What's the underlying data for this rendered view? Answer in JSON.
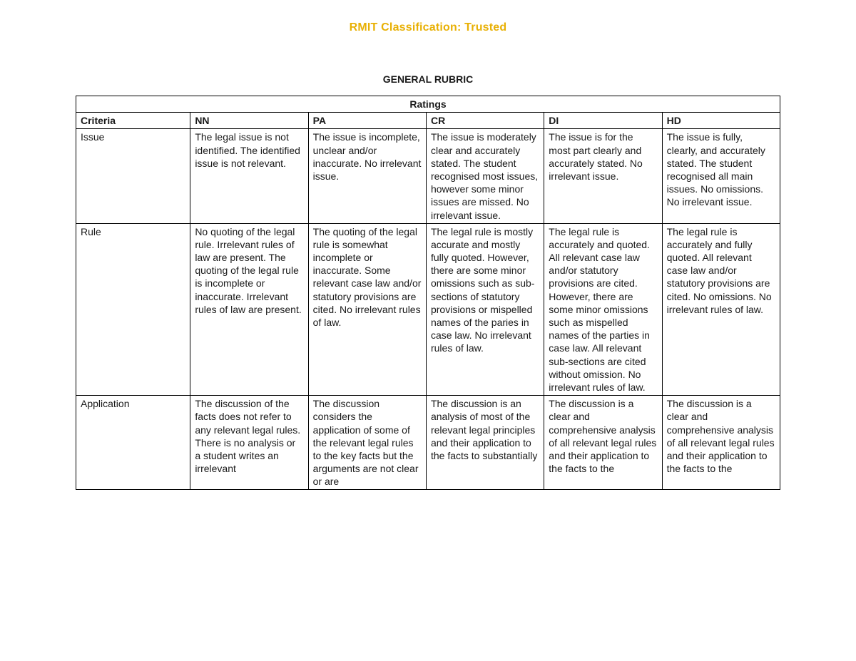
{
  "classification_text": "RMIT Classification: Trusted",
  "classification_color": "#e8b004",
  "classification_fontsize": "16px",
  "title": "GENERAL RUBRIC",
  "ratings_header": "Ratings",
  "columns": [
    "Criteria",
    "NN",
    "PA",
    "CR",
    "DI",
    "HD"
  ],
  "rows": [
    {
      "criteria": "Issue",
      "cells": [
        "The legal issue is not identified. The identified issue is not relevant.",
        "The issue is incomplete, unclear and/or inaccurate. No irrelevant issue.",
        "The issue is moderately clear and accurately stated. The student recognised most issues, however some minor issues are missed. No irrelevant issue.",
        "The issue is for the most part clearly and accurately stated. No irrelevant issue.",
        "The issue is fully, clearly, and accurately stated. The student recognised all main issues. No omissions. No irrelevant issue."
      ]
    },
    {
      "criteria": "Rule",
      "cells": [
        "No quoting of the legal rule. Irrelevant rules of law are present. The quoting of the legal rule is incomplete or inaccurate. Irrelevant rules of law are present.",
        "The quoting of the legal rule is somewhat incomplete or inaccurate. Some relevant case law and/or statutory provisions are cited. No irrelevant rules of law.",
        "The legal rule is mostly accurate and mostly fully quoted. However, there are some minor omissions such as sub-sections of statutory provisions or mispelled names of the paries in case law. No irrelevant rules of law.",
        "The legal rule is accurately and quoted. All relevant case law and/or statutory provisions are cited. However, there are some minor omissions such as mispelled names of the parties in case law. All relevant sub-sections are cited without omission. No irrelevant rules of law.",
        "The legal rule is accurately and fully quoted. All relevant case law and/or statutory provisions are cited. No omissions. No irrelevant rules of law."
      ]
    },
    {
      "criteria": "Application",
      "cells": [
        "The discussion of the facts does not refer to any relevant legal rules. There is no analysis or a student writes an irrelevant",
        "The discussion considers the application of some of the relevant legal rules to the key facts but the arguments are not clear or are",
        "The discussion is an analysis of most of the relevant legal principles and their application to the facts to substantially",
        "The discussion is a clear and comprehensive analysis of all relevant legal rules and their application to the facts to the",
        "The discussion is a clear and comprehensive analysis of all relevant legal rules and their application to the facts to the"
      ]
    }
  ]
}
